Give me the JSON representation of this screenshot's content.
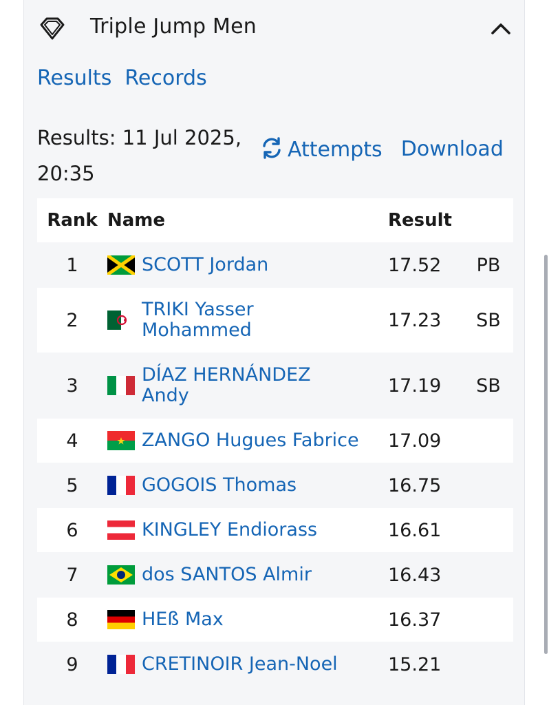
{
  "event": {
    "title": "Triple Jump Men",
    "icon": "diamond-league-logo"
  },
  "tabs": [
    "Results",
    "Records"
  ],
  "meta": {
    "results_label": "Results: 11 Jul 2025, 20:35"
  },
  "actions": {
    "attempts_label": "Attempts",
    "attempts_icon": "sync-icon",
    "download_label": "Download"
  },
  "table": {
    "headers": {
      "rank": "Rank",
      "name": "Name",
      "result": "Result"
    },
    "rows": [
      {
        "rank": "1",
        "name": "SCOTT Jordan",
        "flag": "jamaica-flag",
        "result": "17.52",
        "note": "PB"
      },
      {
        "rank": "2",
        "name": "TRIKI Yasser Mohammed",
        "flag": "algeria-flag",
        "result": "17.23",
        "note": "SB"
      },
      {
        "rank": "3",
        "name": "DÍAZ HERNÁNDEZ Andy",
        "flag": "italy-flag",
        "result": "17.19",
        "note": "SB"
      },
      {
        "rank": "4",
        "name": "ZANGO Hugues Fabrice",
        "flag": "burkina-faso-flag",
        "result": "17.09",
        "note": ""
      },
      {
        "rank": "5",
        "name": "GOGOIS Thomas",
        "flag": "france-flag",
        "result": "16.75",
        "note": ""
      },
      {
        "rank": "6",
        "name": "KINGLEY Endiorass",
        "flag": "austria-flag",
        "result": "16.61",
        "note": ""
      },
      {
        "rank": "7",
        "name": "dos SANTOS Almir",
        "flag": "brazil-flag",
        "result": "16.43",
        "note": ""
      },
      {
        "rank": "8",
        "name": "HEß Max",
        "flag": "germany-flag",
        "result": "16.37",
        "note": ""
      },
      {
        "rank": "9",
        "name": "CRETINOIR Jean-Noel",
        "flag": "france-flag",
        "result": "15.21",
        "note": ""
      }
    ]
  },
  "colors": {
    "link": "#1565b5",
    "card_bg": "#f5f6f8",
    "text": "#1a1a1a"
  }
}
